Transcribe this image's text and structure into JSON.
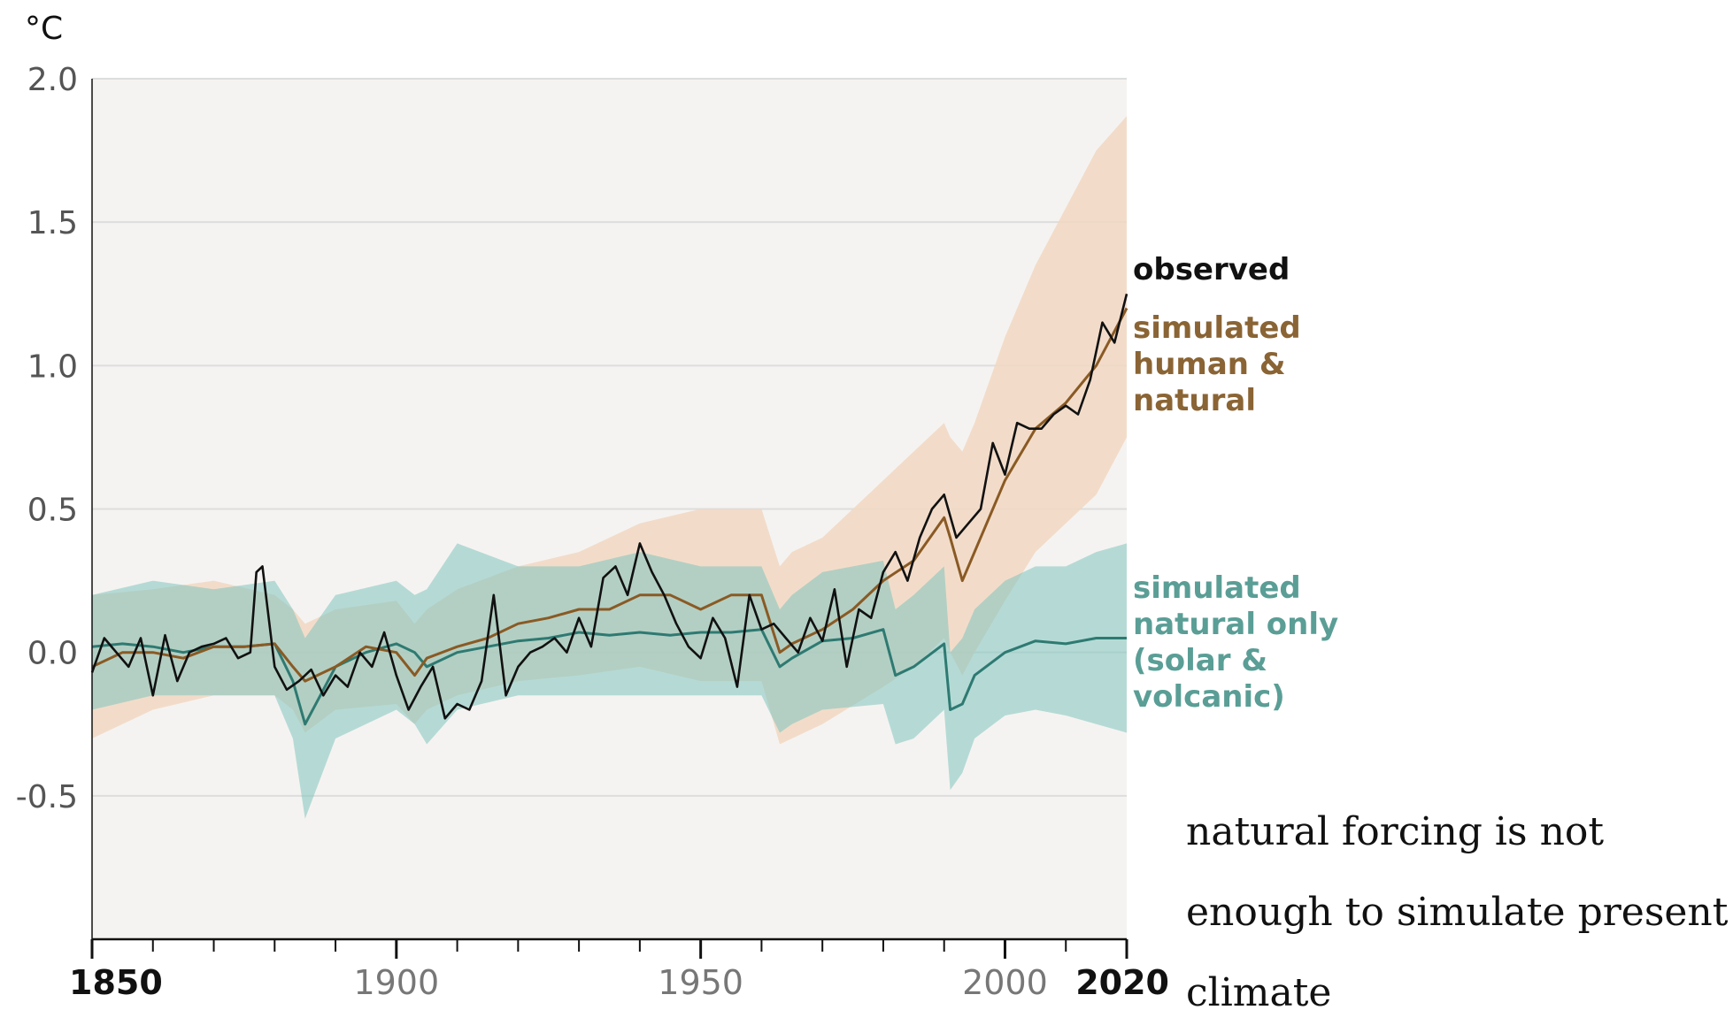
{
  "chart_data": {
    "type": "area",
    "unit_label": "°C",
    "ylim": [
      -1.0,
      2.0
    ],
    "yticks": [
      "2.0",
      "1.5",
      "1.0",
      "0.5",
      "0.0",
      "-0.5"
    ],
    "xlim": [
      1850,
      2020
    ],
    "xticks": [
      "1850",
      "1900",
      "1950",
      "2000",
      "2020"
    ],
    "grid": true,
    "legend_placement": "right (inline labels at line ends)",
    "colors": {
      "observed": "#111111",
      "human_natural": "#8a5a24",
      "human_natural_band": "#f1d7c2",
      "natural": "#2e7a72",
      "natural_band": "#7fc4bd",
      "plot_bg": "#f5f3f1",
      "grid": "#dddddd"
    },
    "series": [
      {
        "name": "observed",
        "x": [
          1850,
          1852,
          1854,
          1856,
          1858,
          1860,
          1862,
          1864,
          1866,
          1868,
          1870,
          1872,
          1874,
          1876,
          1877,
          1878,
          1880,
          1882,
          1884,
          1886,
          1888,
          1890,
          1892,
          1894,
          1896,
          1898,
          1900,
          1902,
          1904,
          1906,
          1908,
          1910,
          1912,
          1914,
          1916,
          1918,
          1920,
          1922,
          1924,
          1926,
          1928,
          1930,
          1932,
          1934,
          1936,
          1938,
          1940,
          1942,
          1944,
          1946,
          1948,
          1950,
          1952,
          1954,
          1956,
          1958,
          1960,
          1962,
          1964,
          1966,
          1968,
          1970,
          1972,
          1974,
          1976,
          1978,
          1980,
          1982,
          1984,
          1986,
          1988,
          1990,
          1992,
          1994,
          1996,
          1998,
          2000,
          2002,
          2004,
          2006,
          2008,
          2010,
          2012,
          2014,
          2016,
          2018,
          2020
        ],
        "y": [
          -0.07,
          0.05,
          0.0,
          -0.05,
          0.05,
          -0.15,
          0.06,
          -0.1,
          0.0,
          0.02,
          0.03,
          0.05,
          -0.02,
          0.0,
          0.28,
          0.3,
          -0.05,
          -0.13,
          -0.1,
          -0.06,
          -0.15,
          -0.08,
          -0.12,
          0.0,
          -0.05,
          0.07,
          -0.08,
          -0.2,
          -0.12,
          -0.05,
          -0.23,
          -0.18,
          -0.2,
          -0.1,
          0.2,
          -0.15,
          -0.05,
          0.0,
          0.02,
          0.05,
          0.0,
          0.12,
          0.02,
          0.26,
          0.3,
          0.2,
          0.38,
          0.28,
          0.2,
          0.1,
          0.02,
          -0.02,
          0.12,
          0.05,
          -0.12,
          0.2,
          0.08,
          0.1,
          0.05,
          0.0,
          0.12,
          0.04,
          0.22,
          -0.05,
          0.15,
          0.12,
          0.28,
          0.35,
          0.25,
          0.4,
          0.5,
          0.55,
          0.4,
          0.45,
          0.5,
          0.73,
          0.62,
          0.8,
          0.78,
          0.78,
          0.83,
          0.86,
          0.83,
          0.95,
          1.15,
          1.08,
          1.25
        ]
      },
      {
        "name": "simulated human & natural",
        "x": [
          1850,
          1855,
          1860,
          1865,
          1870,
          1875,
          1880,
          1883,
          1885,
          1890,
          1895,
          1900,
          1903,
          1905,
          1910,
          1915,
          1920,
          1925,
          1930,
          1935,
          1940,
          1945,
          1950,
          1955,
          1960,
          1963,
          1965,
          1970,
          1975,
          1980,
          1985,
          1990,
          1991,
          1993,
          1995,
          2000,
          2005,
          2010,
          2015,
          2020
        ],
        "y": [
          -0.05,
          0.0,
          0.0,
          -0.02,
          0.02,
          0.02,
          0.03,
          -0.05,
          -0.1,
          -0.05,
          0.02,
          0.0,
          -0.08,
          -0.02,
          0.02,
          0.05,
          0.1,
          0.12,
          0.15,
          0.15,
          0.2,
          0.2,
          0.15,
          0.2,
          0.2,
          0.0,
          0.03,
          0.08,
          0.15,
          0.25,
          0.32,
          0.47,
          0.4,
          0.25,
          0.35,
          0.6,
          0.78,
          0.87,
          1.0,
          1.2
        ]
      },
      {
        "name": "simulated natural only (solar & volcanic)",
        "x": [
          1850,
          1855,
          1860,
          1865,
          1870,
          1875,
          1880,
          1883,
          1885,
          1890,
          1895,
          1900,
          1903,
          1905,
          1910,
          1915,
          1920,
          1925,
          1930,
          1935,
          1940,
          1945,
          1950,
          1955,
          1960,
          1963,
          1965,
          1970,
          1975,
          1980,
          1982,
          1985,
          1990,
          1991,
          1993,
          1995,
          2000,
          2005,
          2010,
          2015,
          2020
        ],
        "y": [
          0.02,
          0.03,
          0.02,
          0.0,
          0.02,
          0.02,
          0.03,
          -0.1,
          -0.25,
          -0.05,
          0.0,
          0.03,
          0.0,
          -0.05,
          0.0,
          0.02,
          0.04,
          0.05,
          0.07,
          0.06,
          0.07,
          0.06,
          0.07,
          0.07,
          0.08,
          -0.05,
          -0.02,
          0.04,
          0.05,
          0.08,
          -0.08,
          -0.05,
          0.03,
          -0.2,
          -0.18,
          -0.08,
          0.0,
          0.04,
          0.03,
          0.05,
          0.05
        ]
      }
    ],
    "bands": [
      {
        "name": "simulated human & natural range",
        "x": [
          1850,
          1860,
          1870,
          1880,
          1883,
          1885,
          1890,
          1900,
          1903,
          1905,
          1910,
          1920,
          1930,
          1940,
          1950,
          1960,
          1963,
          1965,
          1970,
          1980,
          1985,
          1990,
          1991,
          1993,
          1995,
          2000,
          2005,
          2010,
          2015,
          2020
        ],
        "upper": [
          0.2,
          0.22,
          0.25,
          0.2,
          0.15,
          0.1,
          0.15,
          0.18,
          0.1,
          0.15,
          0.22,
          0.3,
          0.35,
          0.45,
          0.5,
          0.5,
          0.3,
          0.35,
          0.4,
          0.6,
          0.7,
          0.8,
          0.75,
          0.7,
          0.8,
          1.1,
          1.35,
          1.55,
          1.75,
          1.87
        ],
        "lower": [
          -0.3,
          -0.2,
          -0.15,
          -0.15,
          -0.2,
          -0.28,
          -0.2,
          -0.18,
          -0.25,
          -0.2,
          -0.15,
          -0.1,
          -0.08,
          -0.05,
          -0.1,
          -0.1,
          -0.32,
          -0.3,
          -0.25,
          -0.12,
          -0.05,
          0.05,
          0.0,
          -0.08,
          0.0,
          0.18,
          0.35,
          0.45,
          0.55,
          0.75
        ]
      },
      {
        "name": "simulated natural only range",
        "x": [
          1850,
          1860,
          1870,
          1880,
          1883,
          1885,
          1890,
          1900,
          1903,
          1905,
          1910,
          1920,
          1930,
          1940,
          1950,
          1960,
          1963,
          1965,
          1970,
          1980,
          1982,
          1985,
          1990,
          1991,
          1993,
          1995,
          2000,
          2005,
          2010,
          2015,
          2020
        ],
        "upper": [
          0.2,
          0.25,
          0.22,
          0.25,
          0.15,
          0.05,
          0.2,
          0.25,
          0.2,
          0.22,
          0.38,
          0.3,
          0.3,
          0.35,
          0.3,
          0.3,
          0.15,
          0.2,
          0.28,
          0.32,
          0.15,
          0.2,
          0.3,
          0.0,
          0.05,
          0.15,
          0.25,
          0.3,
          0.3,
          0.35,
          0.38
        ],
        "lower": [
          -0.2,
          -0.15,
          -0.15,
          -0.15,
          -0.3,
          -0.58,
          -0.3,
          -0.2,
          -0.25,
          -0.32,
          -0.2,
          -0.15,
          -0.15,
          -0.15,
          -0.15,
          -0.15,
          -0.28,
          -0.25,
          -0.2,
          -0.18,
          -0.32,
          -0.3,
          -0.2,
          -0.48,
          -0.42,
          -0.3,
          -0.22,
          -0.2,
          -0.22,
          -0.25,
          -0.28
        ]
      }
    ],
    "labels": {
      "observed": [
        "observed"
      ],
      "human_natural": [
        "simulated",
        "human &",
        "natural"
      ],
      "natural": [
        "simulated",
        "natural only",
        "(solar &",
        "volcanic)"
      ]
    }
  },
  "caption": {
    "lines": [
      "natural forcing is not",
      "enough to simulate present",
      "climate"
    ]
  }
}
